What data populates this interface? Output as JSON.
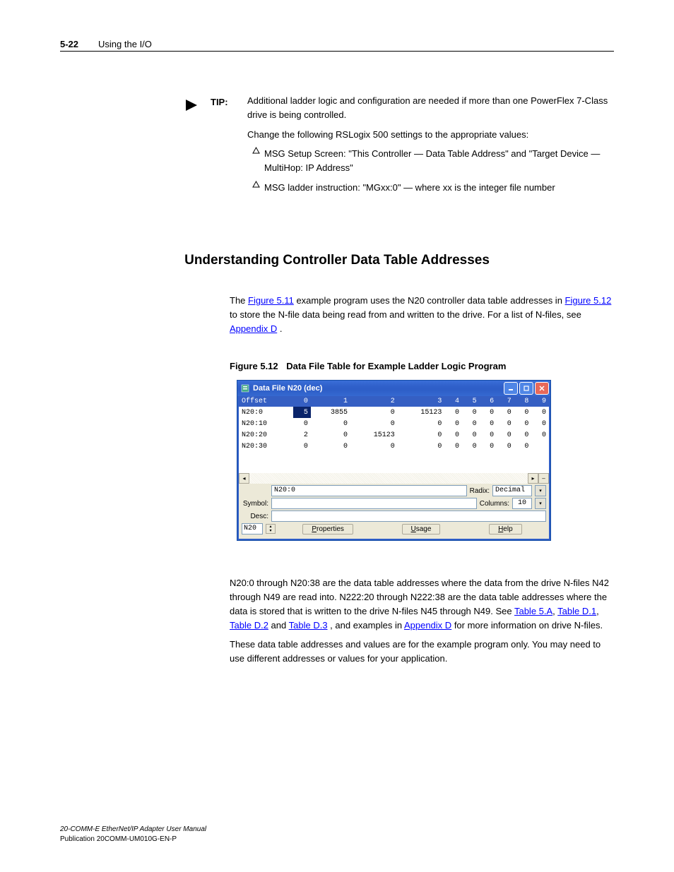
{
  "header": {
    "page_number": "5-22",
    "chapter_title": "Using the I/O"
  },
  "tip": {
    "label": "TIP:",
    "paragraphs": [
      "Additional ladder logic and configuration are needed if more than one PowerFlex 7-Class drive is being controlled.",
      "Change the following RSLogix 500 settings to the appropriate values:"
    ],
    "bullets": [
      "MSG Setup Screen: \"This Controller — Data Table Address\" and \"Target Device — MultiHop: IP Address\"",
      "MSG ladder instruction: \"MGxx:0\" — where xx is the integer file number"
    ]
  },
  "section_heading": "Understanding Controller Data Table Addresses",
  "para1_a": "The ",
  "para1_b": " example program uses the N20 controller data table addresses in ",
  "para1_c": " to store the N-file data being read from and written to the drive. For a list of N-files, see ",
  "links": {
    "fig": "Figure 5.11",
    "apxd": "Appendix D"
  },
  "period": ".",
  "figure": {
    "num": "Figure 5.12",
    "title": "Data File Table for Example Ladder Logic Program"
  },
  "datawin": {
    "title": "Data File N20 (dec)",
    "columns": [
      "Offset",
      "0",
      "1",
      "2",
      "3",
      "4",
      "5",
      "6",
      "7",
      "8",
      "9"
    ],
    "rows": [
      {
        "label": "N20:0",
        "vals": [
          "5",
          "3855",
          "0",
          "15123",
          "0",
          "0",
          "0",
          "0",
          "0",
          "0"
        ]
      },
      {
        "label": "N20:10",
        "vals": [
          "0",
          "0",
          "0",
          "0",
          "0",
          "0",
          "0",
          "0",
          "0",
          "0"
        ]
      },
      {
        "label": "N20:20",
        "vals": [
          "2",
          "0",
          "15123",
          "0",
          "0",
          "0",
          "0",
          "0",
          "0",
          "0"
        ]
      },
      {
        "label": "N20:30",
        "vals": [
          "0",
          "0",
          "0",
          "0",
          "0",
          "0",
          "0",
          "0",
          "0",
          ""
        ]
      }
    ],
    "addr_value": "N20:0",
    "radix_label": "Radix:",
    "radix_value": "Decimal",
    "symbol_label": "Symbol:",
    "columns_label": "Columns:",
    "columns_value": "10",
    "desc_label": "Desc:",
    "file_box": "N20",
    "btn_properties": "Properties",
    "btn_usage": "Usage",
    "btn_help": "Help"
  },
  "para2_a": "N20:0 through N20:38 are the data table addresses where the data from the drive N-files N42 through N49 are read into. N222:20 through N222:38 are the data table addresses where the data is stored that is written to the drive N-files N45 through N49. See ",
  "para2_b": " and ",
  "para2_c": ", and examples in ",
  "para2_d": " for more information on drive N-files.",
  "links2": {
    "t5a": "Table 5.A",
    "td1": "Table D.1",
    "td2": "Table D.2",
    "td3": "Table D.3",
    "apxd": "Appendix D"
  },
  "para3": "These data table addresses and values are for the example program only. You may need to use different addresses or values for your application.",
  "footer": {
    "line1": "20-COMM-E EtherNet/IP Adapter User Manual",
    "line2": "Publication 20COMM-UM010G-EN-P"
  }
}
